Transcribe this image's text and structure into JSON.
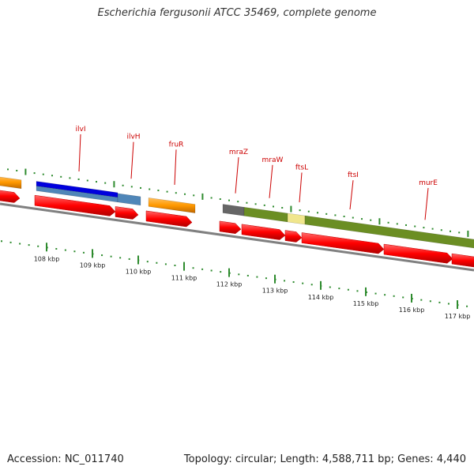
{
  "title": "Escherichia fergusonii ATCC 35469, complete genome",
  "accession": "Accession: NC_011740",
  "topology": "Topology: circular; Length: 4,588,711 bp; Genes: 4,440",
  "ruler_labels": [
    "108 kbp",
    "109 kbp",
    "110 kbp",
    "111 kbp",
    "112 kbp",
    "113 kbp",
    "114 kbp",
    "115 kbp",
    "116 kbp",
    "117 kbp"
  ],
  "gene_labels": [
    "ilvI",
    "ilvH",
    "fruR",
    "mraZ",
    "mraW",
    "ftsL",
    "ftsI",
    "murE"
  ],
  "colors": {
    "backbone": "#808080",
    "cds": "#ff0000",
    "tick": "#2e8b2e",
    "label": "#cc0000",
    "orange": "#ff9900",
    "blue": "#0000dd",
    "steelblue": "#4f86b8",
    "olive": "#6b8e23",
    "gray": "#666666",
    "khaki": "#f0e68c"
  }
}
